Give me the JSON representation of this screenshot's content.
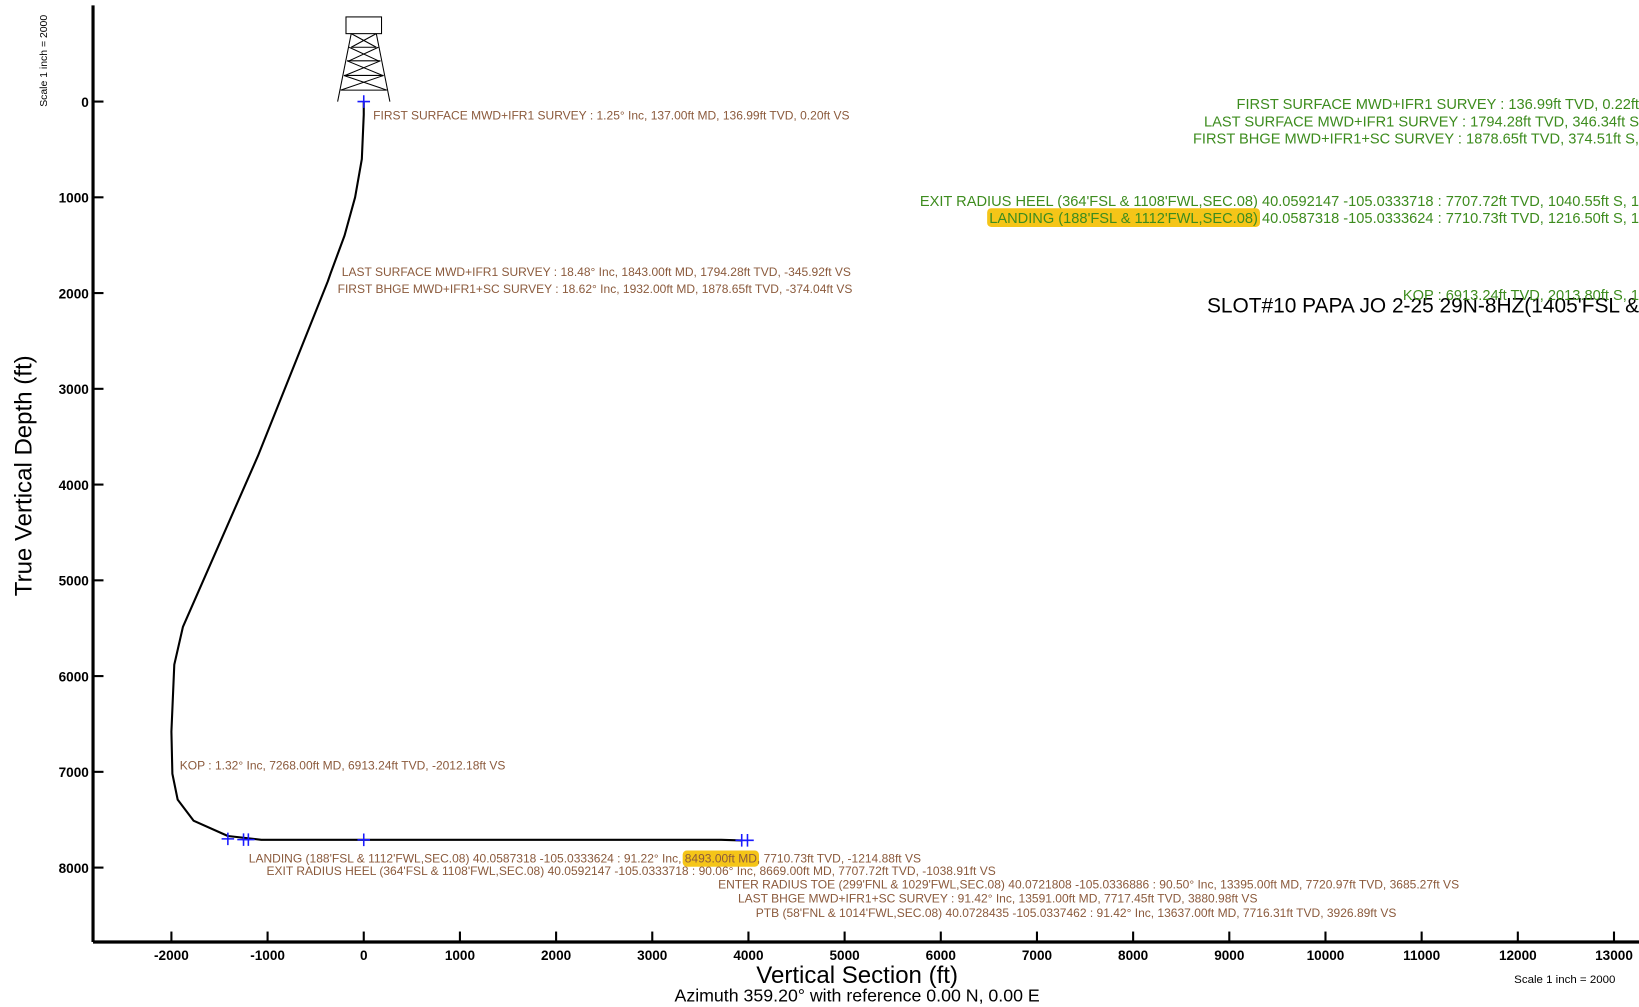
{
  "chart_data": {
    "type": "line",
    "title": "SLOT#10 PAPA JO 2-25 29N-8HZ(1405'FSL &",
    "xlabel": "Vertical Section (ft)",
    "subtitle": "Azimuth 359.20° with reference 0.00 N, 0.00 E",
    "ylabel": "True Vertical Depth (ft)",
    "scale_note_left": "Scale 1 inch = 2000",
    "scale_note_right": "Scale 1 inch = 2000",
    "xlim": [
      -2815,
      13260
    ],
    "ylim": [
      -1004,
      8777
    ],
    "y_inverted": true,
    "xticks": [
      -2000,
      -1000,
      0,
      1000,
      2000,
      3000,
      4000,
      5000,
      6000,
      7000,
      8000,
      9000,
      10000,
      11000,
      12000,
      13000
    ],
    "yticks": [
      0,
      1000,
      2000,
      3000,
      4000,
      5000,
      6000,
      7000,
      8000
    ],
    "color": "#000000",
    "x": [
      0,
      0,
      -20,
      -90,
      -200,
      -345,
      -374,
      -1100,
      -1880,
      -1970,
      -2000,
      -1990,
      -1935,
      -1770,
      -1413,
      -1065,
      0,
      3717,
      3927
    ],
    "y": [
      0,
      137,
      600,
      1000,
      1400,
      1794,
      1878,
      3700,
      5485,
      5880,
      6580,
      7020,
      7290,
      7510,
      7670,
      7710,
      7710,
      7710,
      7716
    ],
    "markers": {
      "color": "#1a1aff",
      "x": [
        0,
        -1413,
        -1250,
        -1200,
        0,
        3930,
        3990
      ],
      "y": [
        0,
        7700,
        7708,
        7708,
        7710,
        7715,
        7715
      ]
    },
    "annotation_color": "#8b5a3c",
    "right_annotation_color": "#3d8c1e",
    "highlight_color": "#f5c518",
    "annotations": [
      {
        "text": [
          "FIRST SURFACE MWD+IFR1 SURVEY : 1.25° Inc, 137.00ft MD, 136.99ft TVD, 0.20ft VS"
        ]
      },
      {
        "text": [
          "LAST SURFACE MWD+IFR1 SURVEY : 18.48° Inc, 1843.00ft MD, 1794.28ft TVD, -345.92ft VS"
        ]
      },
      {
        "text": [
          "FIRST BHGE MWD+IFR1+SC SURVEY : 18.62° Inc, 1932.00ft MD, 1878.65ft TVD, -374.04ft VS"
        ]
      },
      {
        "text": [
          "KOP : 1.32° Inc, 7268.00ft MD, 6913.24ft TVD, -2012.18ft VS"
        ]
      },
      {
        "text": [
          "LANDING (188'FSL & 1112'FWL,SEC.08) 40.0587318 -105.0333624 : 91.22° Inc, ",
          "8493.00ft MD",
          ", 7710.73ft TVD, -1214.88ft VS"
        ],
        "highlight": 1
      },
      {
        "text": [
          "EXIT RADIUS HEEL (364'FSL & 1108'FWL,SEC.08) 40.0592147 -105.0333718 : 90.06° Inc, 8669.00ft MD, 7707.72ft TVD, -1038.91ft VS"
        ]
      },
      {
        "text": [
          "ENTER RADIUS TOE (299'FNL & 1029'FWL,SEC.08) 40.0721808 -105.0336886 : 90.50° Inc, 13395.00ft MD, 7720.97ft TVD, 3685.27ft VS"
        ]
      },
      {
        "text": [
          "LAST BHGE MWD+IFR1+SC SURVEY : 91.42° Inc, 13591.00ft MD, 7717.45ft TVD, 3880.98ft VS"
        ]
      },
      {
        "text": [
          "PTB (58'FNL & 1014'FWL,SEC.08) 40.0728435 -105.0337462 : 91.42° Inc, 13637.00ft MD, 7716.31ft TVD, 3926.89ft VS"
        ]
      }
    ],
    "right_annotations": [
      {
        "text": [
          "FIRST SURFACE MWD+IFR1 SURVEY : 136.99ft TVD, 0.22ft"
        ]
      },
      {
        "text": [
          "LAST SURFACE MWD+IFR1 SURVEY : 1794.28ft TVD, 346.34ft S"
        ]
      },
      {
        "text": [
          "FIRST BHGE MWD+IFR1+SC SURVEY : 1878.65ft TVD, 374.51ft S,"
        ]
      },
      {
        "text": [
          "EXIT RADIUS HEEL (364'FSL & 1108'FWL,SEC.08) 40.0592147 -105.0333718 : 7707.72ft TVD, 1040.55ft S, 1"
        ]
      },
      {
        "text": [
          "LANDING (188'FSL & 1112'FWL,SEC.08)",
          " 40.0587318 -105.0333624 : 7710.73ft TVD, 1216.50ft S, 1"
        ],
        "highlight": 0
      },
      {
        "text": [
          "KOP : 6913.24ft TVD, 2013.80ft S, 1"
        ]
      }
    ]
  }
}
